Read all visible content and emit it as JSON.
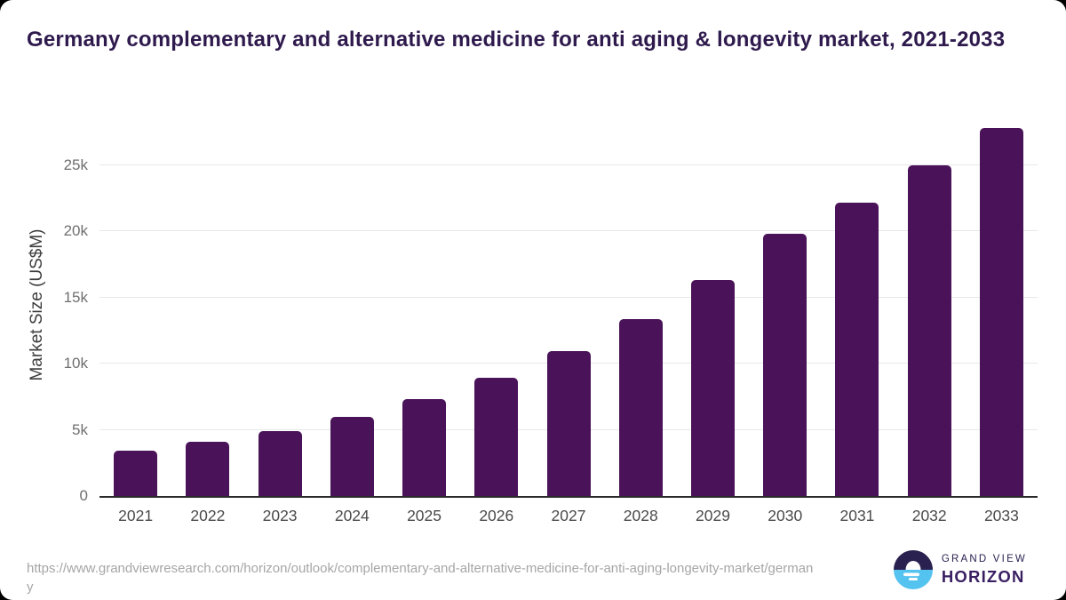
{
  "header": {
    "title": "Germany complementary and alternative medicine for anti aging & longevity market, 2021-2033"
  },
  "chart_data": {
    "type": "bar",
    "title": "Germany complementary and alternative medicine for anti aging & longevity market, 2021-2033",
    "categories": [
      "2021",
      "2022",
      "2023",
      "2024",
      "2025",
      "2026",
      "2027",
      "2028",
      "2029",
      "2030",
      "2031",
      "2032",
      "2033"
    ],
    "values": [
      3400,
      4070,
      4925,
      6000,
      7325,
      8960,
      10975,
      13375,
      16350,
      19825,
      22175,
      24975,
      27845
    ],
    "xlabel": "",
    "ylabel": "Market Size (US$M)",
    "ylim": [
      0,
      28900
    ],
    "yticks": [
      {
        "label": "0",
        "value": 0
      },
      {
        "label": "5k",
        "value": 5000
      },
      {
        "label": "10k",
        "value": 10000
      },
      {
        "label": "15k",
        "value": 15000
      },
      {
        "label": "20k",
        "value": 20000
      },
      {
        "label": "25k",
        "value": 25000
      }
    ],
    "grid": true,
    "legend_position": "none",
    "bar_color": "#4a1258"
  },
  "colors": {
    "title": "#2e1a4d",
    "bar": "#4a1258",
    "gridline": "#e8e8e8",
    "axis_line": "#2b2b2b",
    "logo_navy": "#2b2150",
    "logo_blue": "#55c3f0",
    "logo_purple": "#3a2063"
  },
  "footer": {
    "source_url": "https://www.grandviewresearch.com/horizon/outlook/complementary-and-alternative-medicine-for-anti-aging-longevity-market/germany",
    "logo": {
      "line1": "GRAND VIEW",
      "line2": "HORIZON"
    }
  }
}
